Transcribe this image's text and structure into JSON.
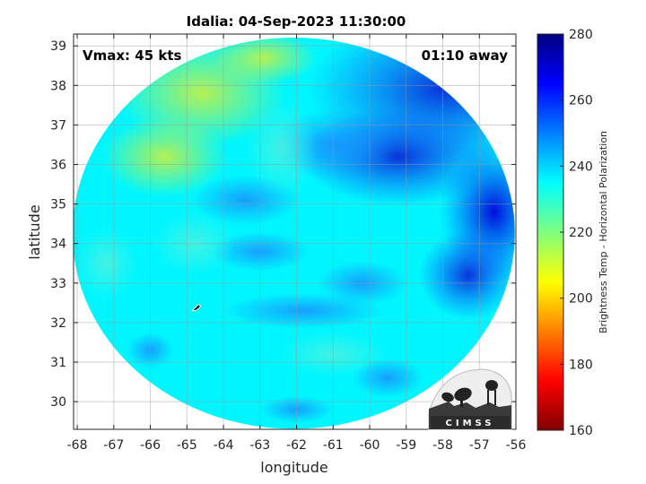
{
  "chart_data": {
    "type": "heatmap",
    "title": "Idalia: 04-Sep-2023 11:30:00",
    "xlabel": "longitude",
    "ylabel": "latitude",
    "xlim": [
      -68.1,
      -56
    ],
    "ylim": [
      29.3,
      39.3
    ],
    "xticks": [
      -68,
      -67,
      -66,
      -65,
      -64,
      -63,
      -62,
      -61,
      -60,
      -59,
      -58,
      -57,
      -56
    ],
    "yticks": [
      30,
      31,
      32,
      33,
      34,
      35,
      36,
      37,
      38,
      39
    ],
    "grid": true,
    "swath": {
      "center": [
        -62.08,
        34.26
      ],
      "radius_deg_lon": 6.05,
      "radius_deg_lat": 4.95
    },
    "colorbar": {
      "label": "Brightness Temp - Horizontal Polarization",
      "min": 160,
      "max": 280,
      "ticks": [
        160,
        180,
        200,
        220,
        240,
        260,
        280
      ],
      "colormap": "jet"
    },
    "field_regions": [
      {
        "name": "northwest warm band",
        "lon": -64.8,
        "lat": 37.9,
        "value": 212
      },
      {
        "name": "northeast cold region",
        "lon": -58.5,
        "lat": 37.5,
        "value": 262
      },
      {
        "name": "eastern edge cold band",
        "lon": -56.5,
        "lat": 34.6,
        "value": 266
      },
      {
        "name": "central field",
        "lon": -62.5,
        "lat": 33.5,
        "value": 234
      },
      {
        "name": "southern field",
        "lon": -62.5,
        "lat": 30.5,
        "value": 232
      }
    ],
    "storm_position": {
      "lon": -64.75,
      "lat": 32.35
    },
    "annotations": {
      "vmax": "Vmax: 45 kts",
      "time_away": "01:10 away"
    }
  },
  "logo": {
    "text": "CIMSS"
  }
}
